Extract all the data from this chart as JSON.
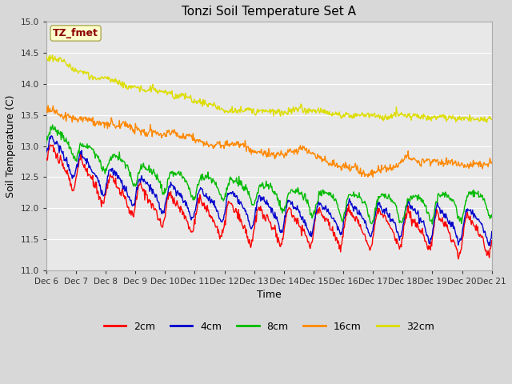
{
  "title": "Tonzi Soil Temperature Set A",
  "xlabel": "Time",
  "ylabel": "Soil Temperature (C)",
  "ylim": [
    11.0,
    15.0
  ],
  "yticks": [
    11.0,
    11.5,
    12.0,
    12.5,
    13.0,
    13.5,
    14.0,
    14.5,
    15.0
  ],
  "fig_bg_color": "#d8d8d8",
  "plot_bg_color": "#e8e8e8",
  "annotation_text": "TZ_fmet",
  "annotation_fg": "#8b0000",
  "annotation_bg": "#ffffcc",
  "series_colors": {
    "2cm": "#ff0000",
    "4cm": "#0000cc",
    "8cm": "#00bb00",
    "16cm": "#ff8800",
    "32cm": "#dddd00"
  },
  "start_day": 6,
  "end_day": 21,
  "num_days": 15,
  "points_per_day": 48
}
